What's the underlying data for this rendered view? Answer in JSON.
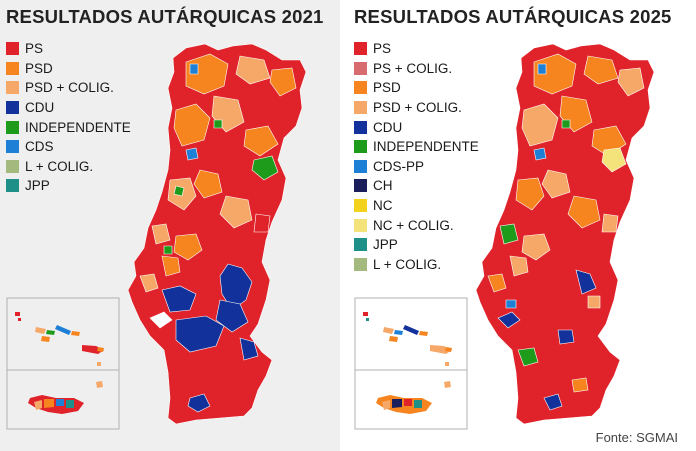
{
  "maps": [
    {
      "title": "RESULTADOS AUTÁRQUICAS 2021",
      "legend": [
        {
          "label": "PS",
          "color": "#e0222b"
        },
        {
          "label": "PSD",
          "color": "#f6841f"
        },
        {
          "label": "PSD + COLIG.",
          "color": "#f6a868"
        },
        {
          "label": "CDU",
          "color": "#12319a"
        },
        {
          "label": "INDEPENDENTE",
          "color": "#1f9b1c"
        },
        {
          "label": "CDS",
          "color": "#1d7fd6"
        },
        {
          "label": "L + COLIG.",
          "color": "#a4b97e"
        },
        {
          "label": "JPP",
          "color": "#1e9088"
        }
      ]
    },
    {
      "title": "RESULTADOS AUTÁRQUICAS 2025",
      "legend": [
        {
          "label": "PS",
          "color": "#e0222b"
        },
        {
          "label": "PS + COLIG.",
          "color": "#d86b70"
        },
        {
          "label": "PSD",
          "color": "#f6841f"
        },
        {
          "label": "PSD + COLIG.",
          "color": "#f6a868"
        },
        {
          "label": "CDU",
          "color": "#12319a"
        },
        {
          "label": "INDEPENDENTE",
          "color": "#1f9b1c"
        },
        {
          "label": "CDS-PP",
          "color": "#1d7fd6"
        },
        {
          "label": "CH",
          "color": "#1a1f5c"
        },
        {
          "label": "NC",
          "color": "#f2d21c"
        },
        {
          "label": "NC + COLIG.",
          "color": "#f4e27a"
        },
        {
          "label": "JPP",
          "color": "#1e9088"
        },
        {
          "label": "L + COLIG.",
          "color": "#a4b97e"
        }
      ]
    }
  ],
  "source": "Fonte: SGMAI"
}
